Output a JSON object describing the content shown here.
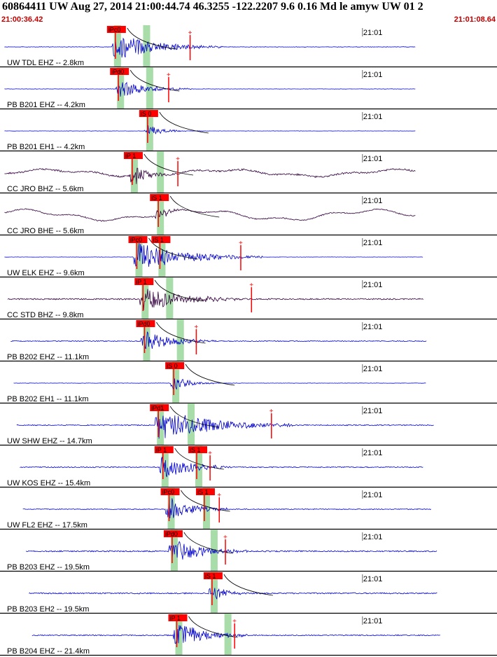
{
  "header": {
    "title": "60864411 UW Aug 27, 2014 21:00:44.74   46.3255 -122.2207  9.6 0.16 Md le amyw UW 01   2",
    "start_time": "21:00:36.42",
    "end_time": "21:01:08.64"
  },
  "colors": {
    "trace_blue": "#0000cc",
    "trace_dark": "#33003f",
    "pick_red": "#ff0000",
    "window_green": "#a8dca8",
    "separator": "#000000",
    "header_time": "#c00000"
  },
  "chart_data": {
    "type": "seismogram",
    "time_range": [
      "21:00:36.42",
      "21:01:08.64"
    ],
    "minute_tick_label": "21:01",
    "traces": [
      {
        "label": "UW TDL EHZ -- 2.8km",
        "color": "blue",
        "picks": [
          {
            "label": "iPc0",
            "t": 7.2
          }
        ],
        "s_arrival": 9.1,
        "event_start": 7.2,
        "event_end": 14.5,
        "amp": 0.8,
        "noise": 0.05,
        "coda_mark": 12.3,
        "end_t": 27.0
      },
      {
        "label": "PB B201 EHZ -- 4.2km",
        "color": "blue",
        "picks": [
          {
            "label": "iPd0",
            "t": 7.4
          }
        ],
        "s_arrival": 9.3,
        "event_start": 7.4,
        "event_end": 12.5,
        "amp": 0.55,
        "noise": 0.04,
        "coda_mark": 10.9,
        "end_t": 27.0
      },
      {
        "label": "PB B201 EH1 -- 4.2km",
        "color": "blue",
        "picks": [
          {
            "label": "iS 0",
            "t": 9.3
          }
        ],
        "s_arrival": 9.3,
        "event_start": 9.3,
        "event_end": 12.0,
        "amp": 0.45,
        "noise": 0.03,
        "coda_mark": null,
        "end_t": 27.0
      },
      {
        "label": "CC JRO BHZ -- 5.6km",
        "color": "dark",
        "picks": [
          {
            "label": "iP 1",
            "t": 8.3
          }
        ],
        "s_arrival": 10.0,
        "event_start": 8.3,
        "event_end": 11.5,
        "amp": 0.7,
        "noise": 0.2,
        "coda_mark": 11.5,
        "end_t": 27.0,
        "wander": 0.3
      },
      {
        "label": "CC JRO BHE -- 5.6km",
        "color": "dark",
        "picks": [
          {
            "label": "iS 1",
            "t": 10.0
          }
        ],
        "s_arrival": 10.0,
        "event_start": 10.0,
        "event_end": 12.0,
        "amp": 0.5,
        "noise": 0.12,
        "coda_mark": null,
        "end_t": 27.0,
        "wander": 0.45
      },
      {
        "label": "UW ELK EHZ -- 9.6km",
        "color": "blue",
        "picks": [
          {
            "label": "iPc0",
            "t": 8.6
          },
          {
            "label": "iS 1",
            "t": 10.1
          }
        ],
        "s_arrival": 10.1,
        "event_start": 8.6,
        "event_end": 17.0,
        "amp": 0.9,
        "noise": 0.03,
        "coda_mark": 15.6,
        "end_t": 27.5
      },
      {
        "label": "CC STD BHZ -- 9.8km",
        "color": "dark",
        "picks": [
          {
            "label": "iP 1",
            "t": 9.0
          }
        ],
        "s_arrival": 10.6,
        "event_start": 9.0,
        "event_end": 16.0,
        "amp": 0.75,
        "noise": 0.15,
        "coda_mark": 16.3,
        "end_t": 27.5
      },
      {
        "label": "PB B202 EHZ -- 11.1km",
        "color": "blue",
        "picks": [
          {
            "label": "iPd0",
            "t": 9.1
          }
        ],
        "s_arrival": 11.3,
        "event_start": 9.1,
        "event_end": 14.0,
        "amp": 0.7,
        "noise": 0.1,
        "coda_mark": 12.7,
        "end_t": 27.7
      },
      {
        "label": "PB B202 EH1 -- 11.1km",
        "color": "blue",
        "picks": [
          {
            "label": "iS 0",
            "t": 11.0
          }
        ],
        "s_arrival": 11.0,
        "event_start": 11.0,
        "event_end": 14.0,
        "amp": 0.5,
        "noise": 0.04,
        "coda_mark": null,
        "end_t": 27.7
      },
      {
        "label": "UW SHW EHZ -- 14.7km",
        "color": "blue",
        "picks": [
          {
            "label": "iPd1",
            "t": 10.0
          }
        ],
        "s_arrival": 12.0,
        "event_start": 10.0,
        "event_end": 19.0,
        "amp": 1.0,
        "noise": 0.12,
        "coda_mark": 17.6,
        "end_t": 28.2
      },
      {
        "label": "UW KOS EHZ -- 15.4km",
        "color": "blue",
        "picks": [
          {
            "label": "iP 1",
            "t": 10.3
          },
          {
            "label": "iS 1",
            "t": 12.5
          }
        ],
        "s_arrival": 12.5,
        "event_start": 10.3,
        "event_end": 15.0,
        "amp": 0.85,
        "noise": 0.12,
        "coda_mark": 13.6,
        "end_t": 27.5
      },
      {
        "label": "UW FL2 EHZ -- 17.5km",
        "color": "blue",
        "picks": [
          {
            "label": "iPc0",
            "t": 10.7
          },
          {
            "label": "iS 1",
            "t": 13.0
          }
        ],
        "s_arrival": 13.0,
        "event_start": 10.7,
        "event_end": 15.0,
        "amp": 0.8,
        "noise": 0.1,
        "coda_mark": 14.2,
        "end_t": 28.0
      },
      {
        "label": "PB B203 EHZ -- 19.5km",
        "color": "blue",
        "picks": [
          {
            "label": "iPd0",
            "t": 10.9
          }
        ],
        "s_arrival": 13.5,
        "event_start": 10.9,
        "event_end": 16.0,
        "amp": 0.8,
        "noise": 0.15,
        "coda_mark": 14.6,
        "end_t": 28.4
      },
      {
        "label": "PB B203 EH2 -- 19.5km",
        "color": "blue",
        "picks": [
          {
            "label": "iS 1",
            "t": 13.5
          }
        ],
        "s_arrival": 13.5,
        "event_start": 13.5,
        "event_end": 16.0,
        "amp": 0.6,
        "noise": 0.15,
        "coda_mark": null,
        "end_t": 28.4
      },
      {
        "label": "PB B204 EHZ -- 21.4km",
        "color": "blue",
        "picks": [
          {
            "label": "iP 1",
            "t": 11.2
          }
        ],
        "s_arrival": 14.4,
        "event_start": 11.2,
        "event_end": 16.0,
        "amp": 0.9,
        "noise": 0.12,
        "coda_mark": 15.2,
        "end_t": 28.6
      }
    ]
  }
}
